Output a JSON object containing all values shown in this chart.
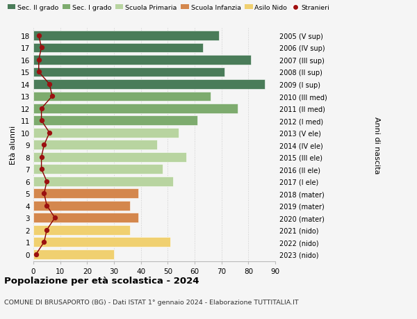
{
  "ages": [
    18,
    17,
    16,
    15,
    14,
    13,
    12,
    11,
    10,
    9,
    8,
    7,
    6,
    5,
    4,
    3,
    2,
    1,
    0
  ],
  "bar_values": [
    69,
    63,
    81,
    71,
    86,
    66,
    76,
    61,
    54,
    46,
    57,
    48,
    52,
    39,
    36,
    39,
    36,
    51,
    30
  ],
  "bar_colors": [
    "#4a7c59",
    "#4a7c59",
    "#4a7c59",
    "#4a7c59",
    "#4a7c59",
    "#7dab6e",
    "#7dab6e",
    "#7dab6e",
    "#b8d4a0",
    "#b8d4a0",
    "#b8d4a0",
    "#b8d4a0",
    "#b8d4a0",
    "#d4874d",
    "#d4874d",
    "#d4874d",
    "#f0d070",
    "#f0d070",
    "#f0d070"
  ],
  "right_labels": [
    "2005 (V sup)",
    "2006 (IV sup)",
    "2007 (III sup)",
    "2008 (II sup)",
    "2009 (I sup)",
    "2010 (III med)",
    "2011 (II med)",
    "2012 (I med)",
    "2013 (V ele)",
    "2014 (IV ele)",
    "2015 (III ele)",
    "2016 (II ele)",
    "2017 (I ele)",
    "2018 (mater)",
    "2019 (mater)",
    "2020 (mater)",
    "2021 (nido)",
    "2022 (nido)",
    "2023 (nido)"
  ],
  "stranieri_values": [
    2,
    3,
    2,
    2,
    6,
    7,
    3,
    3,
    6,
    4,
    3,
    3,
    5,
    4,
    5,
    8,
    5,
    4,
    1
  ],
  "legend_labels": [
    "Sec. II grado",
    "Sec. I grado",
    "Scuola Primaria",
    "Scuola Infanzia",
    "Asilo Nido",
    "Stranieri"
  ],
  "legend_colors": [
    "#4a7c59",
    "#7dab6e",
    "#b8d4a0",
    "#d4874d",
    "#f0d070",
    "#a01010"
  ],
  "title": "Popolazione per età scolastica - 2024",
  "subtitle": "COMUNE DI BRUSAPORTO (BG) - Dati ISTAT 1° gennaio 2024 - Elaborazione TUTTITALIA.IT",
  "ylabel_left": "Età alunni",
  "ylabel_right": "Anni di nascita",
  "xlim": [
    0,
    90
  ],
  "xticks": [
    0,
    10,
    20,
    30,
    40,
    50,
    60,
    70,
    80,
    90
  ],
  "bg_color": "#f5f5f5",
  "bar_height": 0.78
}
